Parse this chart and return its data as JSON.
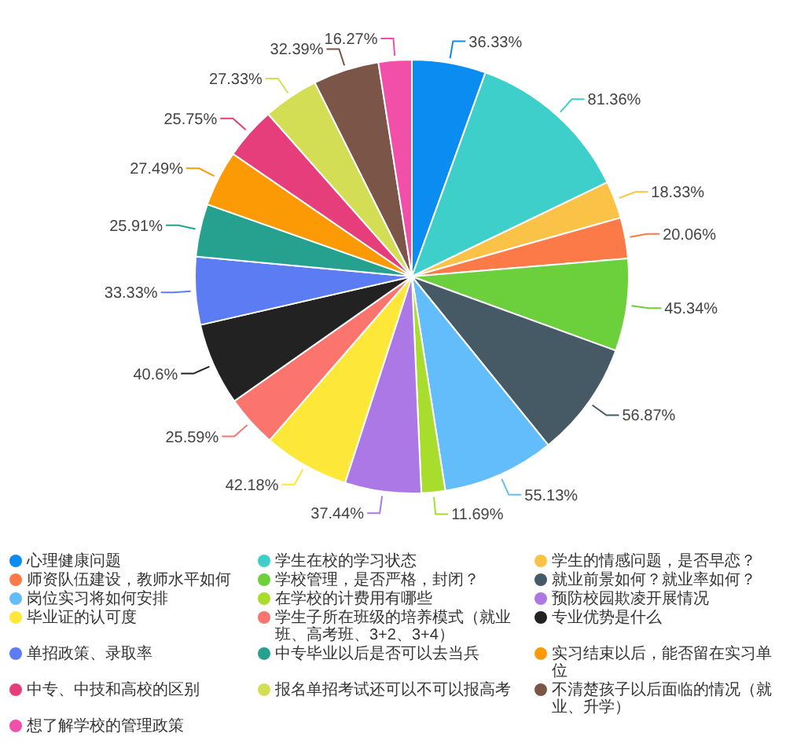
{
  "chart_data": {
    "type": "pie",
    "legend": "bottom",
    "categories": [
      "心理健康问题",
      "学生在校的学习状态",
      "学生的情感问题，是否早恋？",
      "师资队伍建设，教师水平如何",
      "学校管理，是否严格，封闭？",
      "就业前景如何？就业率如何？",
      "岗位实习将如何安排",
      "在学校的计费用有哪些",
      "预防校园欺凌开展情况",
      "毕业证的认可度",
      "学生子所在班级的培养模式（就业班、高考班、3+2、3+4）",
      "专业优势是什么",
      "单招政策、录取率",
      "中专毕业以后是否可以去当兵",
      "实习结束以后，能否留在实习单位",
      "中专、中技和高校的区别",
      "报名单招考试还可以不可以报高考",
      "不清楚孩子以后面临的情况（就业、升学）",
      "想了解学校的管理政策"
    ],
    "values": [
      36.33,
      81.36,
      18.33,
      20.06,
      45.34,
      56.87,
      55.13,
      11.69,
      37.44,
      42.18,
      25.59,
      40.6,
      33.33,
      25.91,
      27.49,
      25.75,
      27.33,
      32.39,
      16.27
    ],
    "value_labels": [
      "36.33%",
      "81.36%",
      "18.33%",
      "20.06%",
      "45.34%",
      "56.87%",
      "55.13%",
      "11.69%",
      "37.44%",
      "42.18%",
      "25.59%",
      "40.6%",
      "33.33%",
      "25.91%",
      "27.49%",
      "25.75%",
      "27.33%",
      "32.39%",
      "16.27%"
    ],
    "colors": [
      "#0a8cf0",
      "#3ecfcb",
      "#fac247",
      "#fb7a48",
      "#6ccf3c",
      "#455a64",
      "#63bdfb",
      "#a8dd2e",
      "#ab78e6",
      "#fde83a",
      "#fb746e",
      "#222222",
      "#5b7cf2",
      "#26a190",
      "#fb9a05",
      "#e53e7a",
      "#d4de55",
      "#7a5548",
      "#f24fa8"
    ]
  }
}
